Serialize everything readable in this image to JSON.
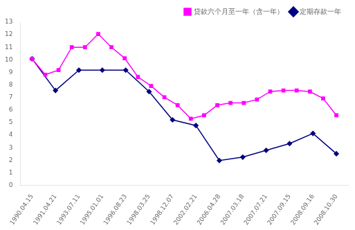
{
  "chart_data": {
    "type": "line",
    "series": [
      {
        "name": "贷款六个月至一年（含一年）",
        "color": "#ff00ff",
        "marker": "square",
        "x": [
          0,
          0.5652173913043478,
          1.1304347826086956,
          1.6956521739130435,
          2.260869565217391,
          2.8260869565217392,
          3.391304347826087,
          3.9565217391304346,
          4.521739130434782,
          5.086956521739131,
          5.6521739130434785,
          6.217391304347826,
          6.782608695652174,
          7.3478260869565215,
          7.913043478260869,
          8.478260869565217,
          9.043478260869565,
          9.608695652173912,
          10.173913043478262,
          10.73913043478261,
          11.304347826086957,
          11.869565217391305,
          12.434782608695652,
          13
        ],
        "values": [
          10.08,
          8.82,
          9.18,
          11.0,
          11.0,
          12.06,
          11.0,
          10.125,
          8.64,
          7.92,
          7.02,
          6.39,
          5.31,
          5.58,
          6.39,
          6.57,
          6.57,
          6.84,
          7.47,
          7.56,
          7.56,
          7.47,
          6.93,
          5.58
        ]
      },
      {
        "name": "定期存款一年",
        "color": "#000080",
        "marker": "diamond",
        "x": [
          0,
          1,
          2,
          3,
          4,
          5,
          6,
          7,
          8,
          9,
          10,
          11,
          12,
          13
        ],
        "values": [
          10.08,
          7.56,
          9.18,
          9.18,
          9.18,
          7.47,
          5.22,
          4.77,
          1.98,
          2.25,
          2.79,
          3.33,
          4.14,
          2.52
        ]
      }
    ],
    "xlim": [
      -0.5,
      13.5
    ],
    "xticks": [
      {
        "value": 0,
        "label": "1990.04.15"
      },
      {
        "value": 1,
        "label": "1991.04.21"
      },
      {
        "value": 2,
        "label": "1993.07.11"
      },
      {
        "value": 3,
        "label": "1995.01.01"
      },
      {
        "value": 4,
        "label": "1996.08.23"
      },
      {
        "value": 5,
        "label": "1998.03.25"
      },
      {
        "value": 6,
        "label": "1998.12.07"
      },
      {
        "value": 7,
        "label": "2002.02.21"
      },
      {
        "value": 8,
        "label": "2006.04.28"
      },
      {
        "value": 9,
        "label": "2007.03.18"
      },
      {
        "value": 10,
        "label": "2007.07.21"
      },
      {
        "value": 11,
        "label": "2007.09.15"
      },
      {
        "value": 12,
        "label": "2008.09.16"
      },
      {
        "value": 13,
        "label": "2008.10.30"
      }
    ],
    "ylim": [
      0,
      13
    ],
    "yticks": [
      0,
      1,
      2,
      3,
      4,
      5,
      6,
      7,
      8,
      9,
      10,
      11,
      12,
      13
    ],
    "grid": false,
    "legend": "upper right"
  }
}
